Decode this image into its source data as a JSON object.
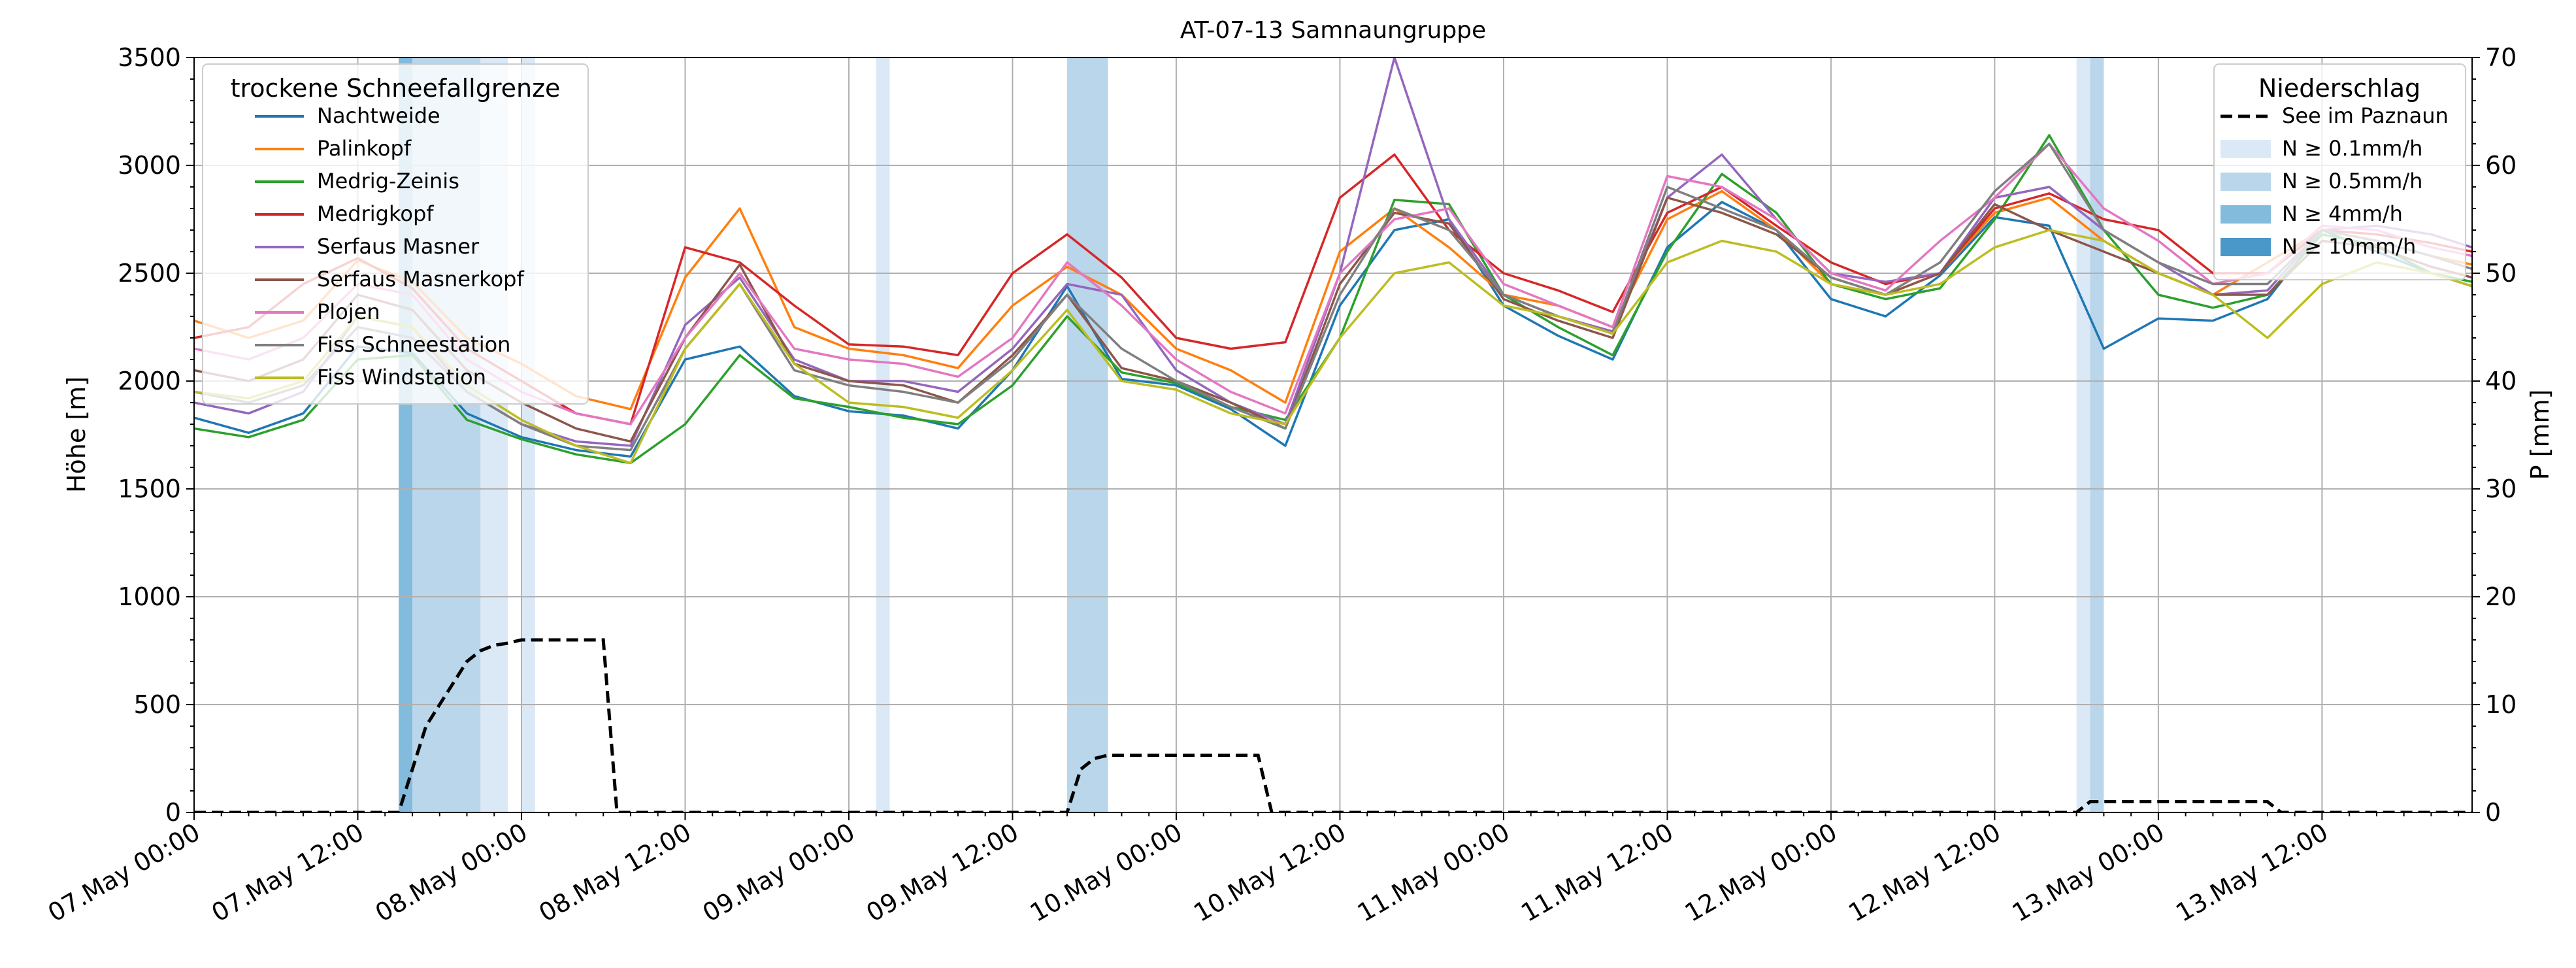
{
  "chart_data": {
    "type": "line",
    "title": "AT-07-13 Samnaungruppe",
    "xlabel": "",
    "ylabel": "Höhe [m]",
    "y2label": "P [mm]",
    "ylim": [
      0,
      3500
    ],
    "y2lim": [
      0,
      70
    ],
    "xlim_hours": [
      0,
      167
    ],
    "grid": true,
    "x_tick_labels": [
      "07.May 00:00",
      "07.May 12:00",
      "08.May 00:00",
      "08.May 12:00",
      "09.May 00:00",
      "09.May 12:00",
      "10.May 00:00",
      "10.May 12:00",
      "11.May 00:00",
      "11.May 12:00",
      "12.May 00:00",
      "12.May 12:00",
      "13.May 00:00",
      "13.May 12:00"
    ],
    "y_ticks": [
      0,
      500,
      1000,
      1500,
      2000,
      2500,
      3000,
      3500
    ],
    "y2_ticks": [
      0,
      10,
      20,
      30,
      40,
      50,
      60,
      70
    ],
    "legend_left": {
      "title": "trockene Schneefallgrenze",
      "placement": "upper-left"
    },
    "legend_right": {
      "title": "Niederschlag",
      "placement": "upper-right",
      "entries": [
        {
          "label": "See im Paznaun",
          "style": "dashed",
          "color": "#000000"
        },
        {
          "label": "N ≥ 0.1mm/h",
          "color": "#dbe9f6"
        },
        {
          "label": "N ≥ 0.5mm/h",
          "color": "#bad6eb"
        },
        {
          "label": "N ≥ 4mm/h",
          "color": "#82bbdb"
        },
        {
          "label": "N ≥ 10mm/h",
          "color": "#4a97c9"
        }
      ]
    },
    "precip_bands": [
      {
        "x0": 15.0,
        "x1": 16.0,
        "level": 2
      },
      {
        "x0": 16.0,
        "x1": 21.0,
        "level": 1
      },
      {
        "x0": 21.0,
        "x1": 23.0,
        "level": 0
      },
      {
        "x0": 24.0,
        "x1": 25.0,
        "level": 0
      },
      {
        "x0": 50.0,
        "x1": 51.0,
        "level": 0
      },
      {
        "x0": 64.0,
        "x1": 67.0,
        "level": 1
      },
      {
        "x0": 138.0,
        "x1": 139.0,
        "level": 0
      },
      {
        "x0": 139.0,
        "x1": 140.0,
        "level": 1
      }
    ],
    "cumulative_precip": {
      "name": "See im Paznaun",
      "x": [
        0,
        15,
        16,
        17,
        18,
        19,
        20,
        21,
        22,
        23,
        24,
        25,
        26,
        27,
        28,
        29,
        30,
        31,
        64,
        65,
        66,
        67,
        78,
        79,
        80,
        138,
        139,
        140,
        152,
        153,
        167
      ],
      "values": [
        0,
        0,
        4,
        8,
        10,
        12,
        14,
        15,
        15.5,
        15.7,
        16,
        16,
        16,
        16,
        16,
        16,
        16,
        0,
        0,
        4,
        5,
        5.3,
        5.3,
        0,
        0,
        0,
        1,
        1,
        1,
        0,
        0
      ]
    },
    "series": [
      {
        "name": "Nachtweide",
        "color": "#1f77b4",
        "x": [
          0,
          4,
          8,
          12,
          16,
          20,
          24,
          28,
          32,
          36,
          40,
          44,
          48,
          52,
          56,
          60,
          64,
          68,
          72,
          76,
          80,
          84,
          88,
          92,
          96,
          100,
          104,
          108,
          112,
          116,
          120,
          124,
          128,
          132,
          136,
          140,
          144,
          148,
          152,
          156,
          160,
          164,
          167
        ],
        "values": [
          1830,
          1760,
          1850,
          2160,
          2130,
          1850,
          1740,
          1680,
          1650,
          2100,
          2160,
          1930,
          1860,
          1840,
          1780,
          2050,
          2440,
          2010,
          1980,
          1870,
          1700,
          2350,
          2700,
          2750,
          2350,
          2210,
          2100,
          2620,
          2830,
          2700,
          2380,
          2300,
          2490,
          2760,
          2720,
          2150,
          2290,
          2280,
          2380,
          2700,
          2600,
          2500,
          2440
        ]
      },
      {
        "name": "Palinkopf",
        "color": "#ff7f0e",
        "x": [
          0,
          4,
          8,
          12,
          16,
          20,
          24,
          28,
          32,
          36,
          40,
          44,
          48,
          52,
          56,
          60,
          64,
          68,
          72,
          76,
          80,
          84,
          88,
          92,
          96,
          100,
          104,
          108,
          112,
          116,
          120,
          124,
          128,
          132,
          136,
          140,
          144,
          148,
          152,
          156,
          160,
          164,
          167
        ],
        "values": [
          2280,
          2200,
          2280,
          2560,
          2460,
          2200,
          2080,
          1930,
          1870,
          2480,
          2800,
          2250,
          2150,
          2120,
          2060,
          2350,
          2530,
          2400,
          2150,
          2050,
          1900,
          2600,
          2800,
          2620,
          2400,
          2350,
          2250,
          2750,
          2880,
          2700,
          2450,
          2400,
          2500,
          2780,
          2850,
          2650,
          2500,
          2400,
          2550,
          2700,
          2650,
          2580,
          2540
        ]
      },
      {
        "name": "Medrig-Zeinis",
        "color": "#2ca02c",
        "x": [
          0,
          4,
          8,
          12,
          16,
          20,
          24,
          28,
          32,
          36,
          40,
          44,
          48,
          52,
          56,
          60,
          64,
          68,
          72,
          76,
          80,
          84,
          88,
          92,
          96,
          100,
          104,
          108,
          112,
          116,
          120,
          124,
          128,
          132,
          136,
          140,
          144,
          148,
          152,
          156,
          160,
          164,
          167
        ],
        "values": [
          1780,
          1740,
          1820,
          2100,
          2120,
          1820,
          1730,
          1660,
          1620,
          1800,
          2120,
          1920,
          1880,
          1830,
          1800,
          1980,
          2300,
          2040,
          1990,
          1880,
          1820,
          2200,
          2840,
          2820,
          2400,
          2250,
          2120,
          2600,
          2960,
          2780,
          2450,
          2380,
          2430,
          2750,
          3140,
          2700,
          2400,
          2340,
          2400,
          2680,
          2630,
          2500,
          2460
        ]
      },
      {
        "name": "Medrigkopf",
        "color": "#d62728",
        "x": [
          0,
          4,
          8,
          12,
          16,
          20,
          24,
          28,
          32,
          36,
          40,
          44,
          48,
          52,
          56,
          60,
          64,
          68,
          72,
          76,
          80,
          84,
          88,
          92,
          96,
          100,
          104,
          108,
          112,
          116,
          120,
          124,
          128,
          132,
          136,
          140,
          144,
          148,
          152,
          156,
          160,
          164,
          167
        ],
        "values": [
          2200,
          2250,
          2450,
          2570,
          2430,
          2150,
          2000,
          1850,
          1800,
          2620,
          2550,
          2350,
          2170,
          2160,
          2120,
          2500,
          2680,
          2480,
          2200,
          2150,
          2180,
          2850,
          3050,
          2700,
          2500,
          2420,
          2320,
          2780,
          2900,
          2720,
          2550,
          2450,
          2500,
          2800,
          2870,
          2750,
          2700,
          2500,
          2500,
          2700,
          2680,
          2640,
          2600
        ]
      },
      {
        "name": "Serfaus Masner",
        "color": "#9467bd",
        "x": [
          0,
          4,
          8,
          12,
          16,
          20,
          24,
          28,
          32,
          36,
          40,
          44,
          48,
          52,
          56,
          60,
          64,
          68,
          72,
          76,
          80,
          84,
          88,
          92,
          96,
          100,
          104,
          108,
          112,
          116,
          120,
          124,
          128,
          132,
          136,
          140,
          144,
          148,
          152,
          156,
          160,
          164,
          167
        ],
        "values": [
          1900,
          1850,
          1950,
          2300,
          2250,
          1950,
          1800,
          1720,
          1700,
          2260,
          2480,
          2100,
          2000,
          2000,
          1950,
          2150,
          2450,
          2400,
          2050,
          1900,
          1800,
          2500,
          3500,
          2750,
          2400,
          2300,
          2230,
          2850,
          3050,
          2750,
          2500,
          2460,
          2500,
          2850,
          2900,
          2700,
          2550,
          2400,
          2420,
          2700,
          2720,
          2680,
          2620
        ]
      },
      {
        "name": "Serfaus Masnerkopf",
        "color": "#8c564b",
        "x": [
          0,
          4,
          8,
          12,
          16,
          20,
          24,
          28,
          32,
          36,
          40,
          44,
          48,
          52,
          56,
          60,
          64,
          68,
          72,
          76,
          80,
          84,
          88,
          92,
          96,
          100,
          104,
          108,
          112,
          116,
          120,
          124,
          128,
          132,
          136,
          140,
          144,
          148,
          152,
          156,
          160,
          164,
          167
        ],
        "values": [
          2050,
          2000,
          2100,
          2400,
          2330,
          2050,
          1900,
          1780,
          1720,
          2200,
          2540,
          2080,
          2000,
          1980,
          1900,
          2120,
          2400,
          2060,
          2000,
          1900,
          1780,
          2450,
          2780,
          2730,
          2380,
          2280,
          2200,
          2850,
          2780,
          2680,
          2480,
          2400,
          2500,
          2820,
          2700,
          2600,
          2500,
          2400,
          2400,
          2650,
          2620,
          2530,
          2480
        ]
      },
      {
        "name": "Plojen",
        "color": "#e377c2",
        "x": [
          0,
          4,
          8,
          12,
          16,
          20,
          24,
          28,
          32,
          36,
          40,
          44,
          48,
          52,
          56,
          60,
          64,
          68,
          72,
          76,
          80,
          84,
          88,
          92,
          96,
          100,
          104,
          108,
          112,
          116,
          120,
          124,
          128,
          132,
          136,
          140,
          144,
          148,
          152,
          156,
          160,
          164,
          167
        ],
        "values": [
          2150,
          2100,
          2200,
          2450,
          2400,
          2100,
          1950,
          1850,
          1800,
          2200,
          2500,
          2150,
          2100,
          2080,
          2020,
          2200,
          2550,
          2350,
          2100,
          1950,
          1850,
          2500,
          2750,
          2800,
          2450,
          2350,
          2250,
          2950,
          2900,
          2750,
          2500,
          2420,
          2650,
          2850,
          3100,
          2800,
          2650,
          2450,
          2500,
          2720,
          2700,
          2620,
          2580
        ]
      },
      {
        "name": "Fiss Schneestation",
        "color": "#7f7f7f",
        "x": [
          0,
          4,
          8,
          12,
          16,
          20,
          24,
          28,
          32,
          36,
          40,
          44,
          48,
          52,
          56,
          60,
          64,
          68,
          72,
          76,
          80,
          84,
          88,
          92,
          96,
          100,
          104,
          108,
          112,
          116,
          120,
          124,
          128,
          132,
          136,
          140,
          144,
          148,
          152,
          156,
          160,
          164,
          167
        ],
        "values": [
          1950,
          1900,
          1980,
          2250,
          2200,
          1950,
          1800,
          1700,
          1680,
          2150,
          2450,
          2050,
          1980,
          1950,
          1900,
          2100,
          2400,
          2150,
          2000,
          1880,
          1780,
          2400,
          2800,
          2700,
          2400,
          2300,
          2220,
          2900,
          2800,
          2700,
          2480,
          2400,
          2550,
          2880,
          3100,
          2700,
          2550,
          2450,
          2450,
          2700,
          2650,
          2580,
          2520
        ]
      },
      {
        "name": "Fiss Windstation",
        "color": "#bcbd22",
        "x": [
          0,
          4,
          8,
          12,
          16,
          20,
          24,
          28,
          32,
          36,
          40,
          44,
          48,
          52,
          56,
          60,
          64,
          68,
          72,
          76,
          80,
          84,
          88,
          92,
          96,
          100,
          104,
          108,
          112,
          116,
          120,
          124,
          128,
          132,
          136,
          140,
          144,
          148,
          152,
          156,
          160,
          164,
          167
        ],
        "values": [
          1950,
          1920,
          2000,
          2300,
          2250,
          1980,
          1820,
          1700,
          1620,
          2150,
          2450,
          2080,
          1900,
          1880,
          1830,
          2050,
          2330,
          2000,
          1960,
          1850,
          1800,
          2200,
          2500,
          2550,
          2350,
          2300,
          2220,
          2550,
          2650,
          2600,
          2450,
          2400,
          2450,
          2620,
          2700,
          2650,
          2500,
          2400,
          2200,
          2450,
          2550,
          2500,
          2440
        ]
      }
    ]
  }
}
